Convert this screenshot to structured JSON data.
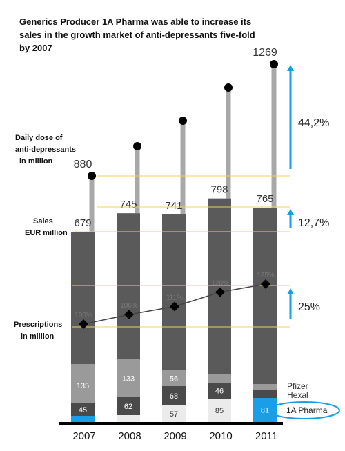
{
  "title": "Generics Producer 1A Pharma was able to increase its sales in the growth market of anti-depressants five-fold by 2007",
  "labels": {
    "daily_dose": [
      "Daily dose of",
      "anti-depressants",
      "in million"
    ],
    "sales": [
      "Sales",
      "EUR million"
    ],
    "prescriptions": [
      "Prescriptions",
      "in million"
    ]
  },
  "chart_data": {
    "type": "bar",
    "categories": [
      "2007",
      "2008",
      "2009",
      "2010",
      "2011"
    ],
    "sales_eur_million": [
      679,
      745,
      741,
      798,
      765
    ],
    "daily_dose_million": [
      880,
      null,
      null,
      null,
      1269
    ],
    "daily_dose_labels": [
      "880",
      "",
      "",
      "",
      "1269"
    ],
    "prescriptions_index_labels": [
      "100%",
      "106%",
      "111%",
      "120%",
      "125%"
    ],
    "prescriptions_index": [
      100,
      106,
      111,
      120,
      125
    ],
    "segments": [
      {
        "name": "Pfizer",
        "values": [
          135,
          133,
          56,
          null,
          null
        ],
        "labels": [
          "135",
          "133",
          "56",
          "",
          ""
        ],
        "color": "#9a9a9a"
      },
      {
        "name": "Hexal",
        "values": [
          45,
          62,
          68,
          46,
          null
        ],
        "labels": [
          "45",
          "62",
          "68",
          "46",
          ""
        ],
        "color": "#4a4a4a"
      },
      {
        "name": "1A Pharma",
        "values": [
          null,
          null,
          57,
          85,
          81
        ],
        "labels": [
          "",
          "",
          "57",
          "85",
          "81"
        ],
        "color": "#ebebeb"
      }
    ],
    "legend": [
      "Pfizer",
      "Hexal",
      "1A Pharma"
    ],
    "growth": [
      {
        "label": "44,2%",
        "metric": "daily dose"
      },
      {
        "label": "12,7%",
        "metric": "sales"
      },
      {
        "label": "25%",
        "metric": "prescriptions"
      }
    ],
    "colors": {
      "bar": "#5a5a5a",
      "stem": "#a8a8a8",
      "accent": "#1a9ee6",
      "guide": "#f0d060",
      "line": "#444444"
    }
  }
}
